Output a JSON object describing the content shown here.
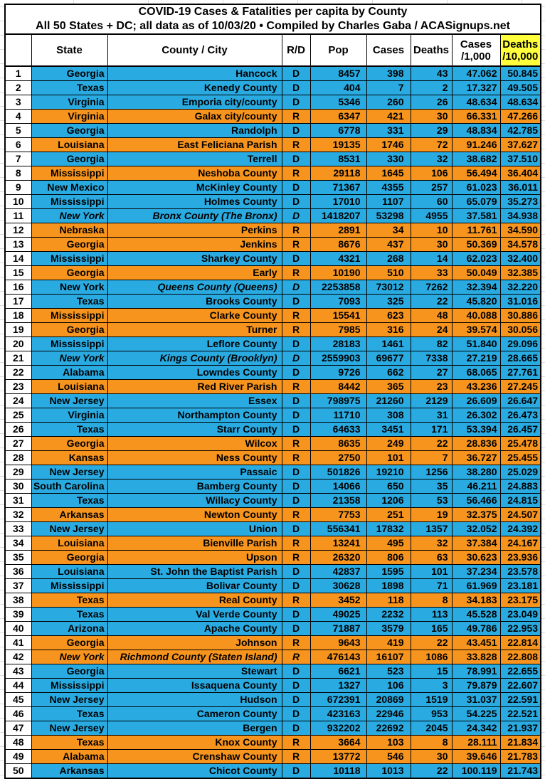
{
  "title": {
    "line1": "COVID-19 Cases & Fatalities per capita by County",
    "line2": "All 50 States + DC; all data as of 10/03/20  • Compiled by Charles Gaba / ACASignups.net"
  },
  "header": {
    "num": "",
    "state": "State",
    "county": "County / City",
    "rd": "R/D",
    "pop": "Pop",
    "cases": "Cases",
    "deaths": "Deaths",
    "cases_per_1k": [
      "Cases",
      "/1,000"
    ],
    "deaths_per_10k": [
      "Deaths",
      "/10,000"
    ]
  },
  "colors": {
    "dem_blue": "#29abe2",
    "rep_orange": "#f7941e",
    "highlight_yellow": "#ffff3c",
    "border": "#000000",
    "text": "#000000"
  },
  "chart_data": {
    "type": "table",
    "title": "COVID-19 Cases & Fatalities per capita by County",
    "subtitle": "All 50 States + DC; all data as of 10/03/20 • Compiled by Charles Gaba / ACASignups.net",
    "columns": [
      "#",
      "State",
      "County / City",
      "R/D",
      "Pop",
      "Cases",
      "Deaths",
      "Cases /1,000",
      "Deaths /10,000"
    ],
    "row_color_rule": "R/D = D rows are blue, R/D = R rows are orange; New York rows italic",
    "rows": [
      {
        "n": 1,
        "state": "Georgia",
        "county": "Hancock",
        "rd": "D",
        "pop": "8457",
        "cases": "398",
        "deaths": "43",
        "cases_per_1k": "47.062",
        "deaths_per_10k": "50.845",
        "italic": ""
      },
      {
        "n": 2,
        "state": "Texas",
        "county": "Kenedy County",
        "rd": "D",
        "pop": "404",
        "cases": "7",
        "deaths": "2",
        "cases_per_1k": "17.327",
        "deaths_per_10k": "49.505",
        "italic": ""
      },
      {
        "n": 3,
        "state": "Virginia",
        "county": "Emporia city/county",
        "rd": "D",
        "pop": "5346",
        "cases": "260",
        "deaths": "26",
        "cases_per_1k": "48.634",
        "deaths_per_10k": "48.634",
        "italic": ""
      },
      {
        "n": 4,
        "state": "Virginia",
        "county": "Galax city/county",
        "rd": "R",
        "pop": "6347",
        "cases": "421",
        "deaths": "30",
        "cases_per_1k": "66.331",
        "deaths_per_10k": "47.266",
        "italic": ""
      },
      {
        "n": 5,
        "state": "Georgia",
        "county": "Randolph",
        "rd": "D",
        "pop": "6778",
        "cases": "331",
        "deaths": "29",
        "cases_per_1k": "48.834",
        "deaths_per_10k": "42.785",
        "italic": ""
      },
      {
        "n": 6,
        "state": "Louisiana",
        "county": "East Feliciana Parish",
        "rd": "R",
        "pop": "19135",
        "cases": "1746",
        "deaths": "72",
        "cases_per_1k": "91.246",
        "deaths_per_10k": "37.627",
        "italic": ""
      },
      {
        "n": 7,
        "state": "Georgia",
        "county": "Terrell",
        "rd": "D",
        "pop": "8531",
        "cases": "330",
        "deaths": "32",
        "cases_per_1k": "38.682",
        "deaths_per_10k": "37.510",
        "italic": ""
      },
      {
        "n": 8,
        "state": "Mississippi",
        "county": "Neshoba County",
        "rd": "R",
        "pop": "29118",
        "cases": "1645",
        "deaths": "106",
        "cases_per_1k": "56.494",
        "deaths_per_10k": "36.404",
        "italic": ""
      },
      {
        "n": 9,
        "state": "New Mexico",
        "county": "McKinley County",
        "rd": "D",
        "pop": "71367",
        "cases": "4355",
        "deaths": "257",
        "cases_per_1k": "61.023",
        "deaths_per_10k": "36.011",
        "italic": ""
      },
      {
        "n": 10,
        "state": "Mississippi",
        "county": "Holmes County",
        "rd": "D",
        "pop": "17010",
        "cases": "1107",
        "deaths": "60",
        "cases_per_1k": "65.079",
        "deaths_per_10k": "35.273",
        "italic": ""
      },
      {
        "n": 11,
        "state": "New York",
        "county": "Bronx County (The Bronx)",
        "rd": "D",
        "pop": "1418207",
        "cases": "53298",
        "deaths": "4955",
        "cases_per_1k": "37.581",
        "deaths_per_10k": "34.938",
        "italic": "all"
      },
      {
        "n": 12,
        "state": "Nebraska",
        "county": "Perkins",
        "rd": "R",
        "pop": "2891",
        "cases": "34",
        "deaths": "10",
        "cases_per_1k": "11.761",
        "deaths_per_10k": "34.590",
        "italic": ""
      },
      {
        "n": 13,
        "state": "Georgia",
        "county": "Jenkins",
        "rd": "R",
        "pop": "8676",
        "cases": "437",
        "deaths": "30",
        "cases_per_1k": "50.369",
        "deaths_per_10k": "34.578",
        "italic": ""
      },
      {
        "n": 14,
        "state": "Mississippi",
        "county": "Sharkey County",
        "rd": "D",
        "pop": "4321",
        "cases": "268",
        "deaths": "14",
        "cases_per_1k": "62.023",
        "deaths_per_10k": "32.400",
        "italic": ""
      },
      {
        "n": 15,
        "state": "Georgia",
        "county": "Early",
        "rd": "R",
        "pop": "10190",
        "cases": "510",
        "deaths": "33",
        "cases_per_1k": "50.049",
        "deaths_per_10k": "32.385",
        "italic": ""
      },
      {
        "n": 16,
        "state": "New York",
        "county": "Queens County (Queens)",
        "rd": "D",
        "pop": "2253858",
        "cases": "73012",
        "deaths": "7262",
        "cases_per_1k": "32.394",
        "deaths_per_10k": "32.220",
        "italic": "county"
      },
      {
        "n": 17,
        "state": "Texas",
        "county": "Brooks County",
        "rd": "D",
        "pop": "7093",
        "cases": "325",
        "deaths": "22",
        "cases_per_1k": "45.820",
        "deaths_per_10k": "31.016",
        "italic": ""
      },
      {
        "n": 18,
        "state": "Mississippi",
        "county": "Clarke County",
        "rd": "R",
        "pop": "15541",
        "cases": "623",
        "deaths": "48",
        "cases_per_1k": "40.088",
        "deaths_per_10k": "30.886",
        "italic": ""
      },
      {
        "n": 19,
        "state": "Georgia",
        "county": "Turner",
        "rd": "R",
        "pop": "7985",
        "cases": "316",
        "deaths": "24",
        "cases_per_1k": "39.574",
        "deaths_per_10k": "30.056",
        "italic": ""
      },
      {
        "n": 20,
        "state": "Mississippi",
        "county": "Leflore County",
        "rd": "D",
        "pop": "28183",
        "cases": "1461",
        "deaths": "82",
        "cases_per_1k": "51.840",
        "deaths_per_10k": "29.096",
        "italic": ""
      },
      {
        "n": 21,
        "state": "New York",
        "county": "Kings County (Brooklyn)",
        "rd": "D",
        "pop": "2559903",
        "cases": "69677",
        "deaths": "7338",
        "cases_per_1k": "27.219",
        "deaths_per_10k": "28.665",
        "italic": "all"
      },
      {
        "n": 22,
        "state": "Alabama",
        "county": "Lowndes County",
        "rd": "D",
        "pop": "9726",
        "cases": "662",
        "deaths": "27",
        "cases_per_1k": "68.065",
        "deaths_per_10k": "27.761",
        "italic": ""
      },
      {
        "n": 23,
        "state": "Louisiana",
        "county": "Red River Parish",
        "rd": "R",
        "pop": "8442",
        "cases": "365",
        "deaths": "23",
        "cases_per_1k": "43.236",
        "deaths_per_10k": "27.245",
        "italic": ""
      },
      {
        "n": 24,
        "state": "New Jersey",
        "county": "Essex",
        "rd": "D",
        "pop": "798975",
        "cases": "21260",
        "deaths": "2129",
        "cases_per_1k": "26.609",
        "deaths_per_10k": "26.647",
        "italic": ""
      },
      {
        "n": 25,
        "state": "Virginia",
        "county": "Northampton County",
        "rd": "D",
        "pop": "11710",
        "cases": "308",
        "deaths": "31",
        "cases_per_1k": "26.302",
        "deaths_per_10k": "26.473",
        "italic": ""
      },
      {
        "n": 26,
        "state": "Texas",
        "county": "Starr County",
        "rd": "D",
        "pop": "64633",
        "cases": "3451",
        "deaths": "171",
        "cases_per_1k": "53.394",
        "deaths_per_10k": "26.457",
        "italic": ""
      },
      {
        "n": 27,
        "state": "Georgia",
        "county": "Wilcox",
        "rd": "R",
        "pop": "8635",
        "cases": "249",
        "deaths": "22",
        "cases_per_1k": "28.836",
        "deaths_per_10k": "25.478",
        "italic": ""
      },
      {
        "n": 28,
        "state": "Kansas",
        "county": "Ness County",
        "rd": "R",
        "pop": "2750",
        "cases": "101",
        "deaths": "7",
        "cases_per_1k": "36.727",
        "deaths_per_10k": "25.455",
        "italic": ""
      },
      {
        "n": 29,
        "state": "New Jersey",
        "county": "Passaic",
        "rd": "D",
        "pop": "501826",
        "cases": "19210",
        "deaths": "1256",
        "cases_per_1k": "38.280",
        "deaths_per_10k": "25.029",
        "italic": ""
      },
      {
        "n": 30,
        "state": "South Carolina",
        "county": "Bamberg County",
        "rd": "D",
        "pop": "14066",
        "cases": "650",
        "deaths": "35",
        "cases_per_1k": "46.211",
        "deaths_per_10k": "24.883",
        "italic": ""
      },
      {
        "n": 31,
        "state": "Texas",
        "county": "Willacy County",
        "rd": "D",
        "pop": "21358",
        "cases": "1206",
        "deaths": "53",
        "cases_per_1k": "56.466",
        "deaths_per_10k": "24.815",
        "italic": ""
      },
      {
        "n": 32,
        "state": "Arkansas",
        "county": "Newton County",
        "rd": "R",
        "pop": "7753",
        "cases": "251",
        "deaths": "19",
        "cases_per_1k": "32.375",
        "deaths_per_10k": "24.507",
        "italic": ""
      },
      {
        "n": 33,
        "state": "New Jersey",
        "county": "Union",
        "rd": "D",
        "pop": "556341",
        "cases": "17832",
        "deaths": "1357",
        "cases_per_1k": "32.052",
        "deaths_per_10k": "24.392",
        "italic": ""
      },
      {
        "n": 34,
        "state": "Louisiana",
        "county": "Bienville Parish",
        "rd": "R",
        "pop": "13241",
        "cases": "495",
        "deaths": "32",
        "cases_per_1k": "37.384",
        "deaths_per_10k": "24.167",
        "italic": ""
      },
      {
        "n": 35,
        "state": "Georgia",
        "county": "Upson",
        "rd": "R",
        "pop": "26320",
        "cases": "806",
        "deaths": "63",
        "cases_per_1k": "30.623",
        "deaths_per_10k": "23.936",
        "italic": ""
      },
      {
        "n": 36,
        "state": "Louisiana",
        "county": "St. John the Baptist Parish",
        "rd": "D",
        "pop": "42837",
        "cases": "1595",
        "deaths": "101",
        "cases_per_1k": "37.234",
        "deaths_per_10k": "23.578",
        "italic": ""
      },
      {
        "n": 37,
        "state": "Mississippi",
        "county": "Bolivar County",
        "rd": "D",
        "pop": "30628",
        "cases": "1898",
        "deaths": "71",
        "cases_per_1k": "61.969",
        "deaths_per_10k": "23.181",
        "italic": ""
      },
      {
        "n": 38,
        "state": "Texas",
        "county": "Real County",
        "rd": "R",
        "pop": "3452",
        "cases": "118",
        "deaths": "8",
        "cases_per_1k": "34.183",
        "deaths_per_10k": "23.175",
        "italic": ""
      },
      {
        "n": 39,
        "state": "Texas",
        "county": "Val Verde County",
        "rd": "D",
        "pop": "49025",
        "cases": "2232",
        "deaths": "113",
        "cases_per_1k": "45.528",
        "deaths_per_10k": "23.049",
        "italic": ""
      },
      {
        "n": 40,
        "state": "Arizona",
        "county": "Apache County",
        "rd": "D",
        "pop": "71887",
        "cases": "3579",
        "deaths": "165",
        "cases_per_1k": "49.786",
        "deaths_per_10k": "22.953",
        "italic": ""
      },
      {
        "n": 41,
        "state": "Georgia",
        "county": "Johnson",
        "rd": "R",
        "pop": "9643",
        "cases": "419",
        "deaths": "22",
        "cases_per_1k": "43.451",
        "deaths_per_10k": "22.814",
        "italic": ""
      },
      {
        "n": 42,
        "state": "New York",
        "county": "Richmond County (Staten Island)",
        "rd": "R",
        "pop": "476143",
        "cases": "16107",
        "deaths": "1086",
        "cases_per_1k": "33.828",
        "deaths_per_10k": "22.808",
        "italic": "all"
      },
      {
        "n": 43,
        "state": "Georgia",
        "county": "Stewart",
        "rd": "D",
        "pop": "6621",
        "cases": "523",
        "deaths": "15",
        "cases_per_1k": "78.991",
        "deaths_per_10k": "22.655",
        "italic": ""
      },
      {
        "n": 44,
        "state": "Mississippi",
        "county": "Issaquena County",
        "rd": "D",
        "pop": "1327",
        "cases": "106",
        "deaths": "3",
        "cases_per_1k": "79.879",
        "deaths_per_10k": "22.607",
        "italic": ""
      },
      {
        "n": 45,
        "state": "New Jersey",
        "county": "Hudson",
        "rd": "D",
        "pop": "672391",
        "cases": "20869",
        "deaths": "1519",
        "cases_per_1k": "31.037",
        "deaths_per_10k": "22.591",
        "italic": ""
      },
      {
        "n": 46,
        "state": "Texas",
        "county": "Cameron County",
        "rd": "D",
        "pop": "423163",
        "cases": "22946",
        "deaths": "953",
        "cases_per_1k": "54.225",
        "deaths_per_10k": "22.521",
        "italic": ""
      },
      {
        "n": 47,
        "state": "New Jersey",
        "county": "Bergen",
        "rd": "D",
        "pop": "932202",
        "cases": "22692",
        "deaths": "2045",
        "cases_per_1k": "24.342",
        "deaths_per_10k": "21.937",
        "italic": ""
      },
      {
        "n": 48,
        "state": "Texas",
        "county": "Knox County",
        "rd": "R",
        "pop": "3664",
        "cases": "103",
        "deaths": "8",
        "cases_per_1k": "28.111",
        "deaths_per_10k": "21.834",
        "italic": ""
      },
      {
        "n": 49,
        "state": "Alabama",
        "county": "Crenshaw County",
        "rd": "R",
        "pop": "13772",
        "cases": "546",
        "deaths": "30",
        "cases_per_1k": "39.646",
        "deaths_per_10k": "21.783",
        "italic": ""
      },
      {
        "n": 50,
        "state": "Arkansas",
        "county": "Chicot County",
        "rd": "D",
        "pop": "10118",
        "cases": "1013",
        "deaths": "22",
        "cases_per_1k": "100.119",
        "deaths_per_10k": "21.743",
        "italic": ""
      }
    ]
  }
}
